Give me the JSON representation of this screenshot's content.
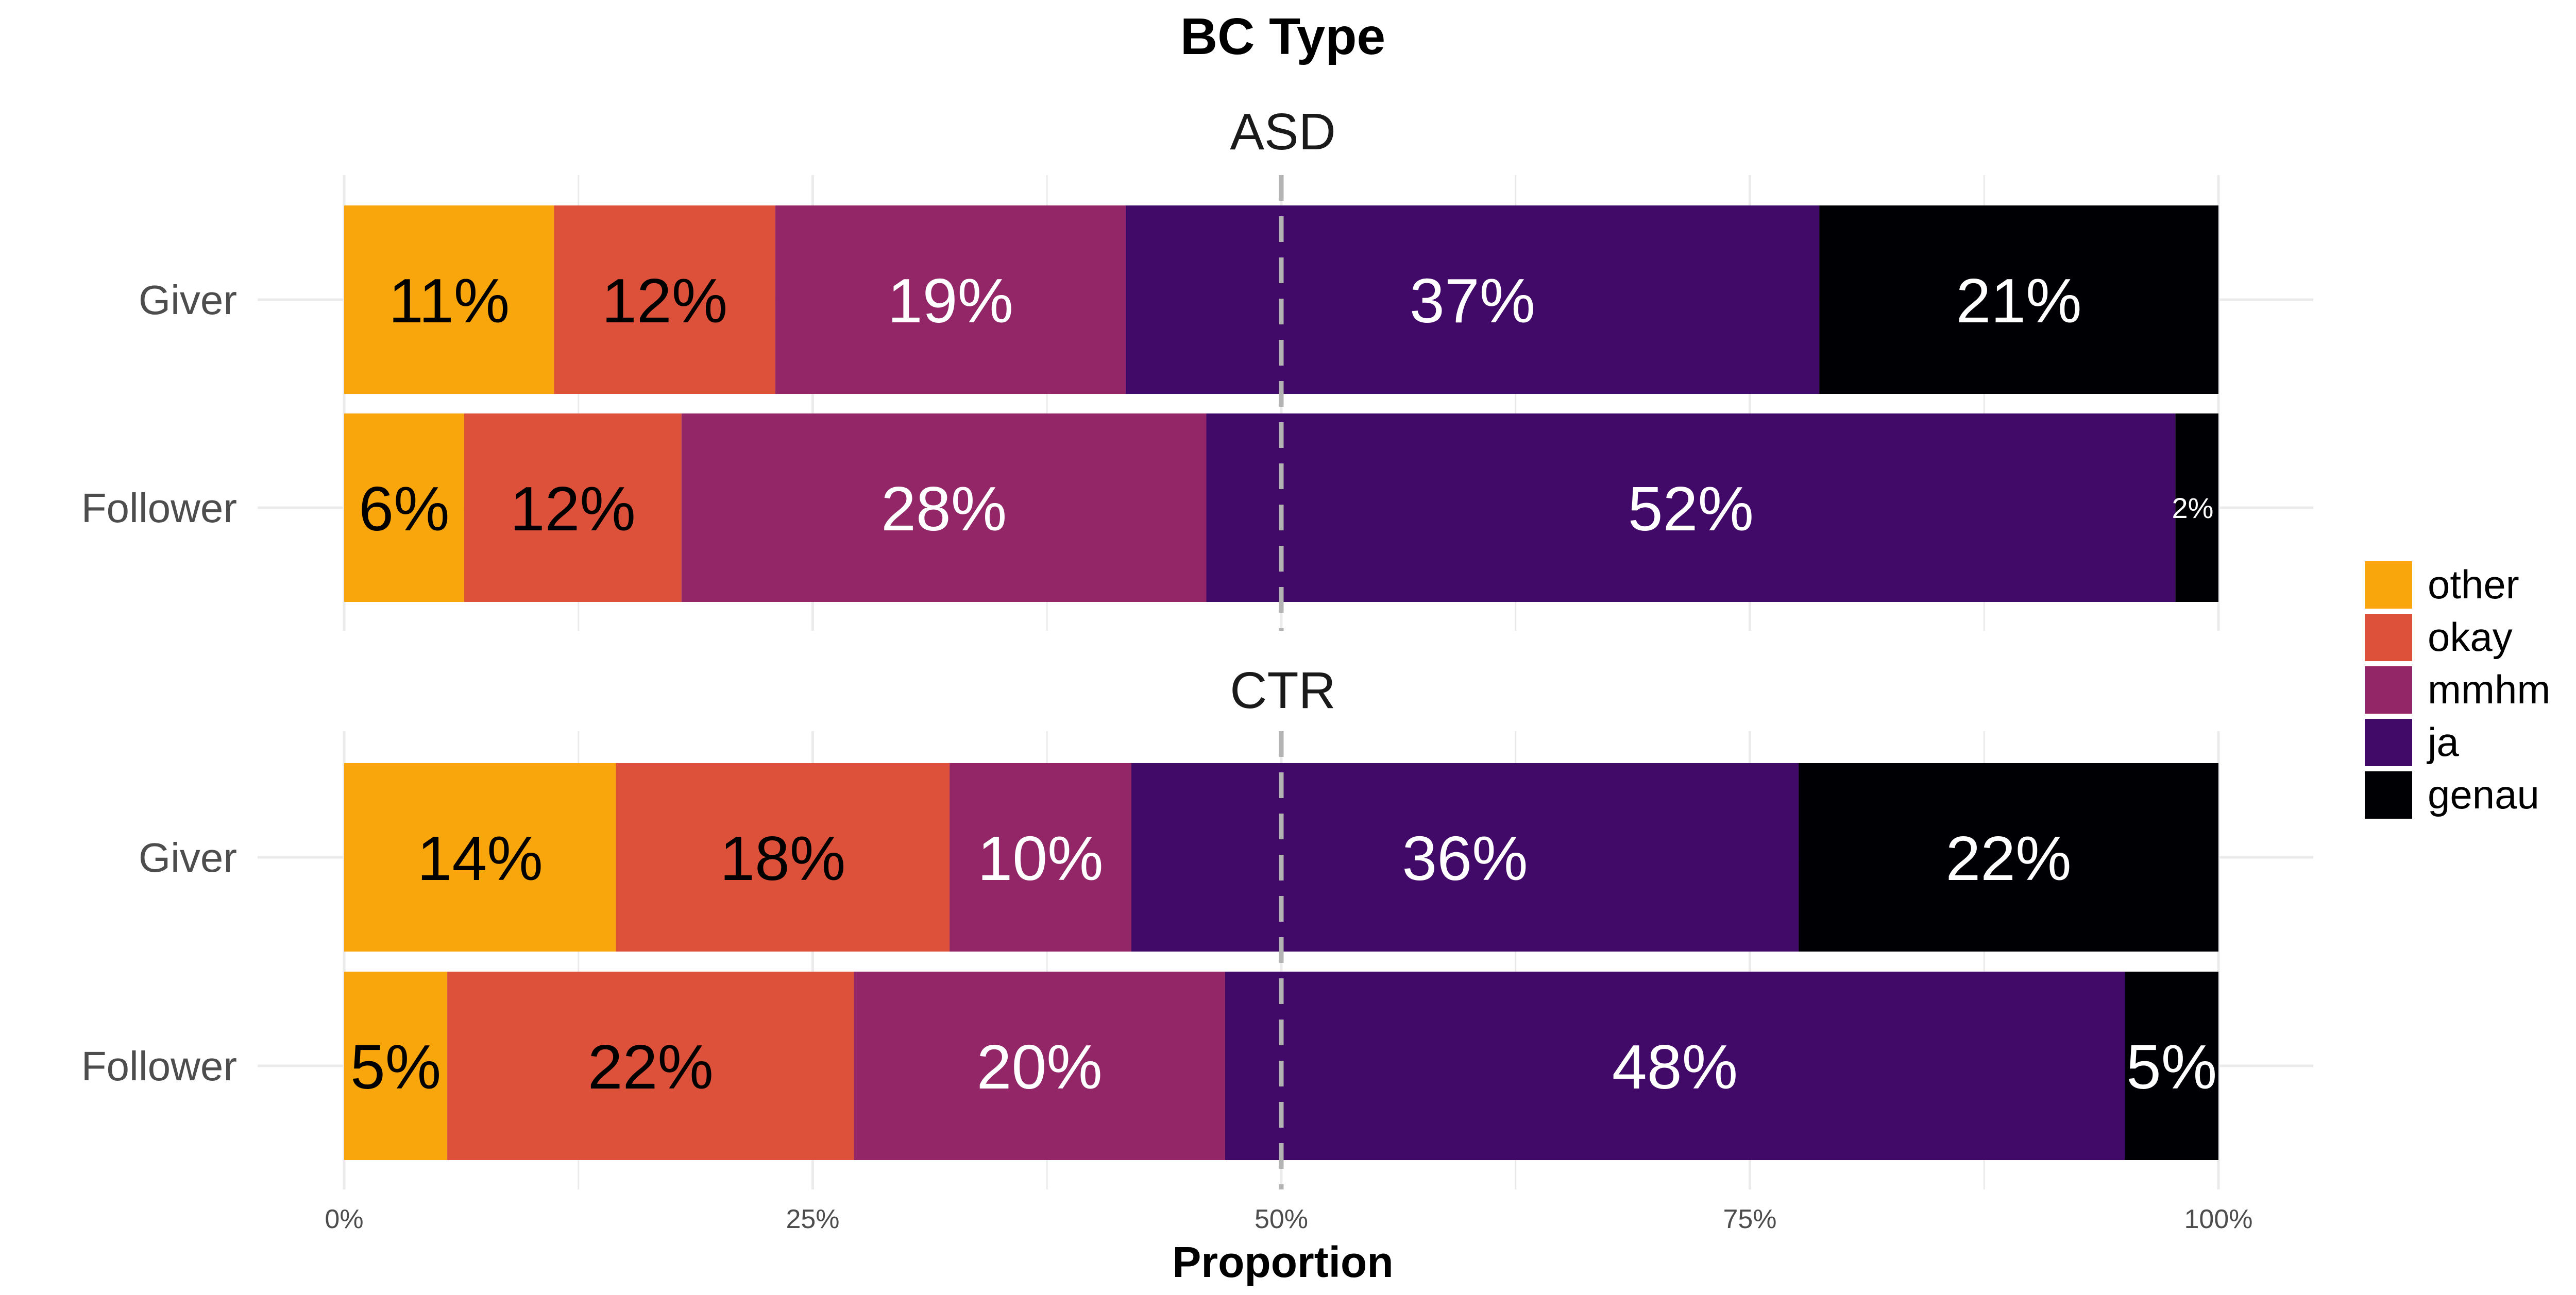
{
  "chart_data": {
    "type": "bar",
    "orientation": "horizontal",
    "stacked": true,
    "title": "BC Type",
    "xlabel": "Proportion",
    "ylabel": "",
    "xlim": [
      0,
      1
    ],
    "x_ticks": [
      0,
      0.25,
      0.5,
      0.75,
      1
    ],
    "x_tick_labels": [
      "0%",
      "25%",
      "50%",
      "75%",
      "100%"
    ],
    "reference_line": {
      "x": 0.5,
      "style": "dashed",
      "color": "#b3b3b3"
    },
    "grid": true,
    "legend": {
      "position": "right",
      "entries": [
        {
          "label": "other",
          "color": "#f9a50c"
        },
        {
          "label": "okay",
          "color": "#dd513a"
        },
        {
          "label": "mmhm",
          "color": "#932667"
        },
        {
          "label": "ja",
          "color": "#420a68"
        },
        {
          "label": "genau",
          "color": "#000004"
        }
      ]
    },
    "series_order": [
      "other",
      "okay",
      "mmhm",
      "ja",
      "genau"
    ],
    "label_colors": {
      "other": "#000000",
      "okay": "#000000",
      "mmhm": "#ffffff",
      "ja": "#ffffff",
      "genau": "#ffffff"
    },
    "panels": [
      {
        "title": "ASD",
        "rows": [
          {
            "category": "Giver",
            "values": [
              0.112,
              0.118,
              0.187,
              0.37,
              0.213
            ],
            "labels": [
              "11%",
              "12%",
              "19%",
              "37%",
              "21%"
            ]
          },
          {
            "category": "Follower",
            "values": [
              0.064,
              0.116,
              0.28,
              0.517,
              0.023
            ],
            "labels": [
              "6%",
              "12%",
              "28%",
              "52%",
              "2%"
            ]
          }
        ]
      },
      {
        "title": "CTR",
        "rows": [
          {
            "category": "Giver",
            "values": [
              0.145,
              0.178,
              0.097,
              0.356,
              0.224
            ],
            "labels": [
              "14%",
              "18%",
              "10%",
              "36%",
              "22%"
            ]
          },
          {
            "category": "Follower",
            "values": [
              0.055,
              0.217,
              0.198,
              0.48,
              0.05
            ],
            "labels": [
              "5%",
              "22%",
              "20%",
              "48%",
              "5%"
            ]
          }
        ]
      }
    ]
  }
}
